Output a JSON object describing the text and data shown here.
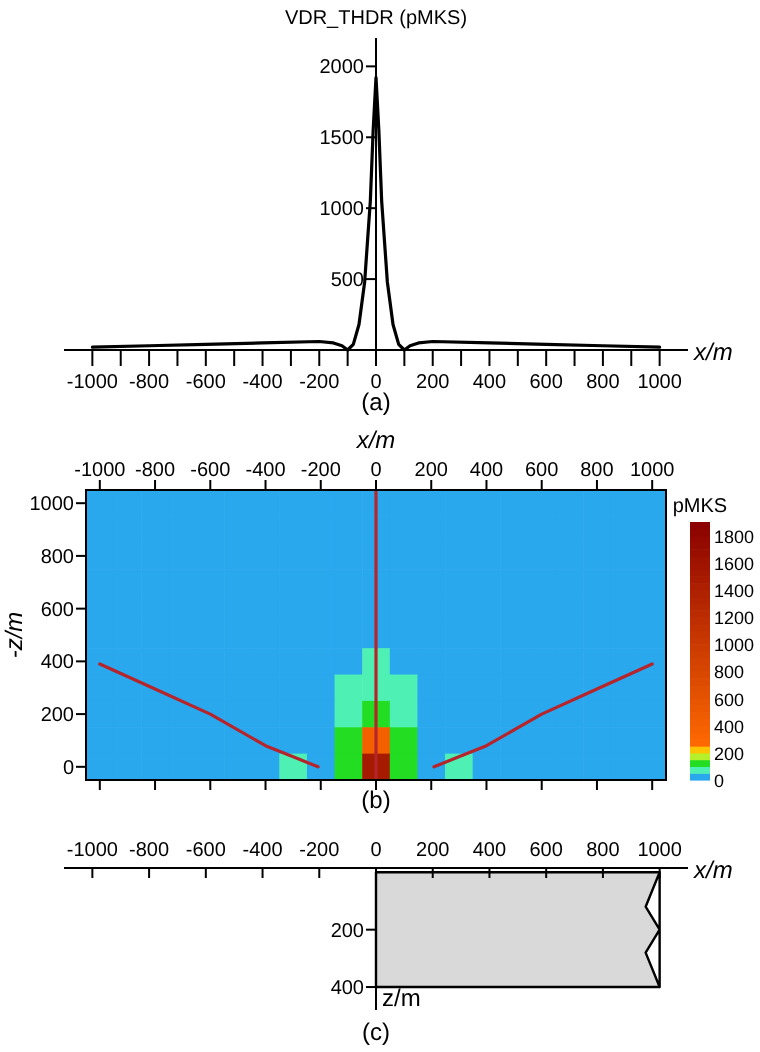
{
  "chart_data": [
    {
      "type": "line",
      "ylabel": "VDR_THDR (pMKS)",
      "xlabel": "x/m",
      "annotations": [
        "(a)"
      ],
      "xlim": [
        -1100,
        1100
      ],
      "ylim": [
        0,
        2200
      ],
      "xticks": [
        -1000,
        {
          "value": -900,
          "label": null
        },
        -800,
        {
          "value": -700,
          "label": null
        },
        -600,
        {
          "value": -500,
          "label": null
        },
        -400,
        {
          "value": -300,
          "label": null
        },
        -200,
        {
          "value": -100,
          "label": null
        },
        0,
        {
          "value": 100,
          "label": null
        },
        200,
        {
          "value": 300,
          "label": null
        },
        400,
        {
          "value": 500,
          "label": null
        },
        600,
        {
          "value": 700,
          "label": null
        },
        800,
        {
          "value": 900,
          "label": null
        },
        1000
      ],
      "yticks": [
        500,
        1000,
        1500,
        2000
      ],
      "series": [
        {
          "color": "#000000",
          "x": [
            -1000,
            -800,
            -600,
            -400,
            -200,
            -150,
            -120,
            -100,
            -80,
            -60,
            -40,
            -20,
            -10,
            0,
            10,
            20,
            40,
            60,
            80,
            100,
            120,
            150,
            200,
            400,
            600,
            800,
            1000
          ],
          "values": [
            20,
            30,
            40,
            50,
            60,
            50,
            30,
            0,
            40,
            180,
            480,
            1050,
            1550,
            1920,
            1550,
            1050,
            480,
            180,
            40,
            0,
            30,
            50,
            60,
            50,
            40,
            30,
            20
          ]
        }
      ]
    },
    {
      "type": "heatmap",
      "clabel": "pMKS",
      "clim": [
        0,
        1900
      ],
      "cticks": [
        0,
        200,
        400,
        600,
        800,
        1000,
        1200,
        1400,
        1600,
        1800
      ],
      "categories": [
        null,
        null,
        null,
        null,
        null,
        null,
        null,
        null,
        null,
        null,
        null,
        null,
        null,
        null,
        null,
        null,
        null,
        null,
        null,
        null,
        null
      ],
      "y_categories": [
        null,
        null,
        null,
        null,
        null,
        null,
        null,
        null,
        null,
        null,
        null
      ],
      "cells": [
        [
          20,
          20,
          20,
          20,
          20,
          20,
          20,
          20,
          20,
          20,
          20,
          20,
          20,
          20,
          20,
          20,
          20,
          20,
          20,
          20,
          20
        ],
        [
          20,
          20,
          20,
          20,
          20,
          20,
          20,
          20,
          20,
          20,
          20,
          20,
          20,
          20,
          20,
          20,
          20,
          20,
          20,
          20,
          20
        ],
        [
          20,
          20,
          20,
          20,
          20,
          20,
          20,
          20,
          20,
          20,
          20,
          20,
          20,
          20,
          20,
          20,
          20,
          20,
          20,
          20,
          20
        ],
        [
          20,
          20,
          20,
          20,
          20,
          20,
          20,
          20,
          20,
          20,
          20,
          20,
          20,
          20,
          20,
          20,
          20,
          20,
          20,
          20,
          20
        ],
        [
          20,
          20,
          20,
          20,
          20,
          20,
          20,
          20,
          20,
          20,
          20,
          20,
          20,
          20,
          20,
          20,
          20,
          20,
          20,
          20,
          20
        ],
        [
          20,
          20,
          20,
          20,
          20,
          20,
          20,
          20,
          20,
          20,
          20,
          20,
          20,
          20,
          20,
          20,
          20,
          20,
          20,
          20,
          20
        ],
        [
          20,
          20,
          20,
          20,
          20,
          20,
          20,
          20,
          20,
          20,
          75,
          20,
          20,
          20,
          20,
          20,
          20,
          20,
          20,
          20,
          20
        ],
        [
          20,
          20,
          20,
          20,
          20,
          20,
          20,
          20,
          20,
          75,
          75,
          75,
          20,
          20,
          20,
          20,
          20,
          20,
          20,
          20,
          20
        ],
        [
          20,
          20,
          20,
          20,
          20,
          20,
          20,
          20,
          20,
          75,
          120,
          75,
          20,
          20,
          20,
          20,
          20,
          20,
          20,
          20,
          20
        ],
        [
          20,
          20,
          20,
          20,
          20,
          20,
          20,
          20,
          20,
          120,
          400,
          120,
          20,
          20,
          20,
          20,
          20,
          20,
          20,
          20,
          20
        ],
        [
          20,
          20,
          20,
          20,
          20,
          20,
          20,
          60,
          20,
          120,
          1500,
          120,
          20,
          60,
          20,
          20,
          20,
          20,
          20,
          20,
          20
        ]
      ]
    },
    {
      "type": "line",
      "xlabel": "x/m",
      "ylabel": "-z/m",
      "annotations": [
        "(b)"
      ],
      "xlim": [
        -1050,
        1050
      ],
      "ylim": [
        -50,
        1050
      ],
      "xticks": [
        -1000,
        -800,
        -600,
        -400,
        -200,
        0,
        200,
        400,
        600,
        800,
        1000
      ],
      "yticks": [
        0,
        200,
        400,
        600,
        800,
        1000
      ],
      "ref_lines": [
        {
          "axis": "x",
          "value": 0,
          "color": "#b5252b"
        }
      ],
      "series": [
        {
          "color": "#b5252b",
          "x": [
            -1000,
            -800,
            -600,
            -400,
            -300,
            -210
          ],
          "values": [
            390,
            295,
            200,
            80,
            38,
            0
          ]
        },
        {
          "color": "#b5252b",
          "x": [
            210,
            300,
            400,
            600,
            800,
            1000
          ],
          "values": [
            0,
            38,
            80,
            200,
            295,
            390
          ]
        }
      ]
    },
    {
      "type": "area",
      "xlabel": "x/m",
      "ylabel": "z/m",
      "annotations": [
        "(c)"
      ],
      "xlim": [
        -1100,
        1100
      ],
      "ylim": [
        480,
        -15
      ],
      "xticks": [
        -1000,
        -800,
        -600,
        -400,
        -200,
        0,
        200,
        400,
        600,
        800,
        1000
      ],
      "yticks": [
        200,
        400
      ],
      "series": [
        {
          "color": "#d9d9d9",
          "x": [
            0,
            1000
          ],
          "values": [
            400,
            400
          ]
        }
      ]
    }
  ]
}
